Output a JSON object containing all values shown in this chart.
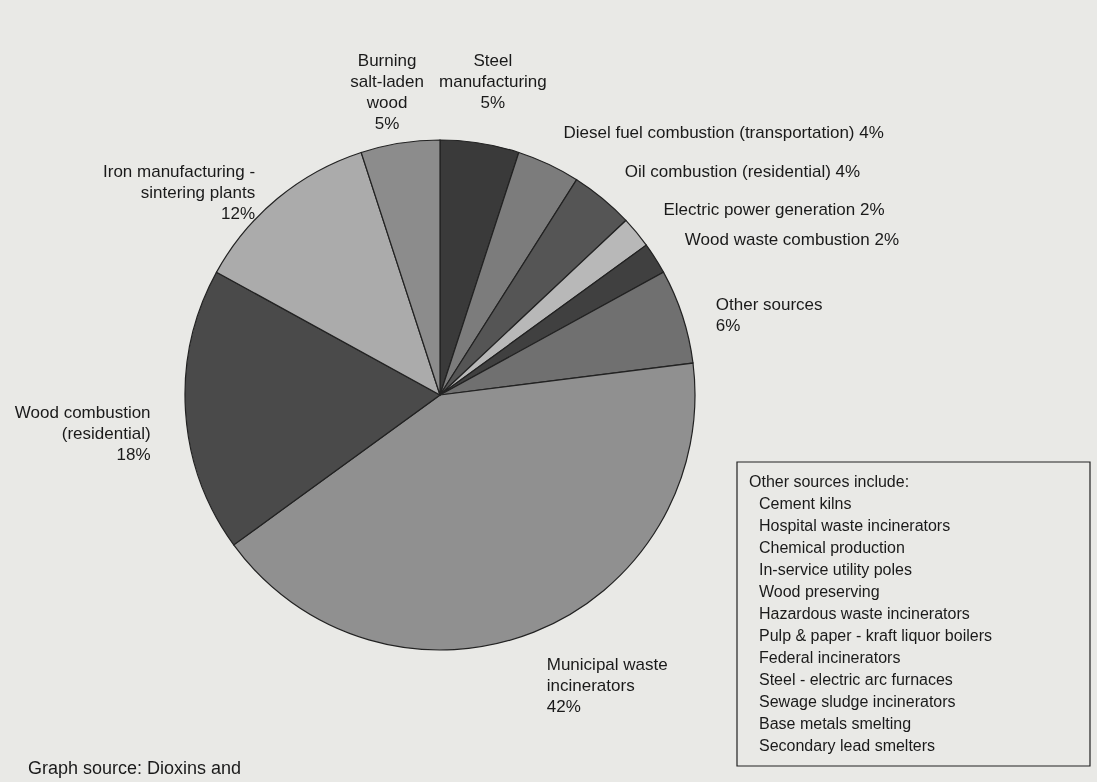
{
  "chart_data": {
    "type": "pie",
    "categories": [
      "Steel manufacturing",
      "Diesel fuel combustion (transportation)",
      "Oil combustion (residential)",
      "Electric power generation",
      "Wood waste combustion",
      "Other sources",
      "Municipal waste incinerators",
      "Wood combustion (residential)",
      "Iron manufacturing - sintering plants",
      "Burning salt-laden wood"
    ],
    "values": [
      5,
      4,
      4,
      2,
      2,
      6,
      42,
      18,
      12,
      5
    ],
    "value_labels": [
      "5%",
      "4%",
      "4%",
      "2%",
      "2%",
      "6%",
      "42%",
      "18%",
      "12%",
      "5%"
    ],
    "colors": [
      "#3a3a3a",
      "#7c7c7c",
      "#555555",
      "#b8b8b8",
      "#404040",
      "#707070",
      "#909090",
      "#4a4a4a",
      "#ababab",
      "#8c8c8c"
    ],
    "annotations": [
      "Other sources include:\nCement kilns\nHospital waste incinerators\nChemical production\nIn-service utility poles\nWood preserving\nHazardous waste incinerators\nPulp & paper - kraft liquor boilers\nFederal incinerators\nSteel - electric arc furnaces\nSewage sludge incinerators\nBase metals smelting\nSecondary lead smelters",
      "Graph source: Dioxins and"
    ]
  }
}
